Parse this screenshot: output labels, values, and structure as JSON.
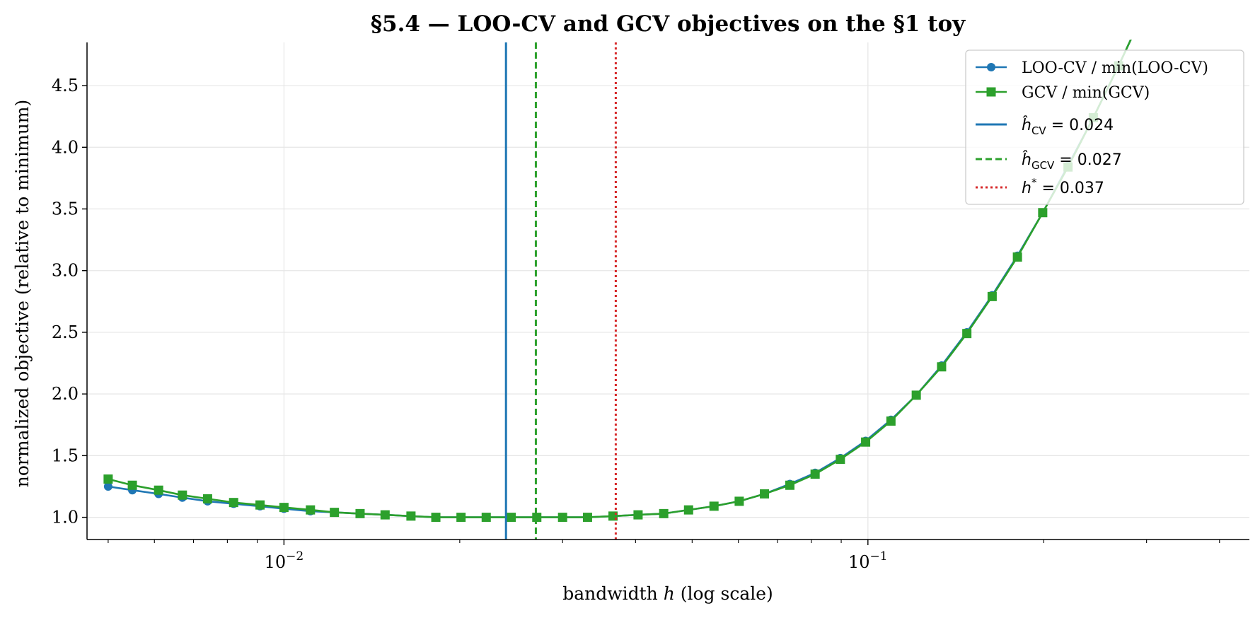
{
  "chart_data": {
    "type": "line",
    "title": "§5.4 — LOO-CV and GCV objectives on the §1 toy",
    "xlabel_prefix": "bandwidth ",
    "xlabel_var": "h",
    "xlabel_suffix": " (log scale)",
    "ylabel": "normalized objective (relative to minimum)",
    "xscale": "log",
    "xlim": [
      0.0046,
      0.45
    ],
    "ylim": [
      0.82,
      4.85
    ],
    "grid": true,
    "legend_position": "top-right",
    "x_tick_labels": [
      {
        "value": 0.01,
        "base": "10",
        "exp": "−2"
      },
      {
        "value": 0.1,
        "base": "10",
        "exp": "−1"
      }
    ],
    "y_ticks": [
      1.0,
      1.5,
      2.0,
      2.5,
      3.0,
      3.5,
      4.0,
      4.5
    ],
    "y_tick_labels": [
      "1.0",
      "1.5",
      "2.0",
      "2.5",
      "3.0",
      "3.5",
      "4.0",
      "4.5"
    ],
    "x": [
      0.005,
      0.0055,
      0.0061,
      0.0067,
      0.0074,
      0.0082,
      0.0091,
      0.01,
      0.0111,
      0.0122,
      0.0135,
      0.0149,
      0.0165,
      0.0182,
      0.0201,
      0.0222,
      0.0245,
      0.0271,
      0.03,
      0.0331,
      0.0366,
      0.0404,
      0.0447,
      0.0493,
      0.0545,
      0.0602,
      0.0665,
      0.0735,
      0.0812,
      0.0897,
      0.0991,
      0.1095,
      0.121,
      0.1337,
      0.1477,
      0.1632,
      0.1803,
      0.1992,
      0.2201,
      0.2432,
      0.2687,
      0.2968
    ],
    "series": [
      {
        "name": "LOO-CV / min(LOO-CV)",
        "color": "#1f77b4",
        "marker": "circle",
        "values": [
          1.25,
          1.22,
          1.19,
          1.16,
          1.13,
          1.11,
          1.09,
          1.07,
          1.05,
          1.04,
          1.03,
          1.02,
          1.01,
          1.0,
          1.0,
          1.0,
          1.0,
          1.0,
          1.0,
          1.0,
          1.01,
          1.02,
          1.03,
          1.06,
          1.09,
          1.13,
          1.19,
          1.27,
          1.36,
          1.48,
          1.62,
          1.79,
          1.99,
          2.23,
          2.5,
          2.8,
          3.12,
          3.47,
          3.85,
          4.24,
          4.66,
          5.1
        ]
      },
      {
        "name": "GCV / min(GCV)",
        "color": "#2ca02c",
        "marker": "square",
        "values": [
          1.31,
          1.26,
          1.22,
          1.18,
          1.15,
          1.12,
          1.1,
          1.08,
          1.06,
          1.04,
          1.03,
          1.02,
          1.01,
          1.0,
          1.0,
          1.0,
          1.0,
          1.0,
          1.0,
          1.0,
          1.01,
          1.02,
          1.03,
          1.06,
          1.09,
          1.13,
          1.19,
          1.26,
          1.35,
          1.47,
          1.61,
          1.78,
          1.99,
          2.22,
          2.49,
          2.79,
          3.11,
          3.47,
          3.84,
          4.24,
          4.66,
          5.1
        ]
      }
    ],
    "vlines": [
      {
        "x": 0.024,
        "color": "#1f77b4",
        "style": "solid",
        "sym": "ĥ",
        "sub": "CV",
        "sup": "",
        "rest": " = 0.024"
      },
      {
        "x": 0.027,
        "color": "#2ca02c",
        "style": "dashed",
        "sym": "ĥ",
        "sub": "GCV",
        "sup": "",
        "rest": " = 0.027"
      },
      {
        "x": 0.037,
        "color": "#d62728",
        "style": "dotted",
        "sym": "h",
        "sub": "",
        "sup": "*",
        "rest": " = 0.037"
      }
    ],
    "colors": {
      "axes": "#000000",
      "grid": "#e6e6e6",
      "legend_border": "#cccccc"
    }
  }
}
